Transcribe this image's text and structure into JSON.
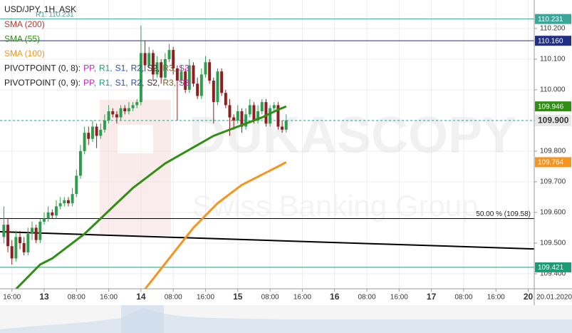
{
  "chart_data": {
    "type": "candlestick",
    "title": "USD/JPY, 1H, ASK",
    "watermark": {
      "brand": "DUKASCOPY",
      "tagline": "Swiss Banking Group"
    },
    "date_label": "20.01.2020",
    "xlim": [
      -10.95,
      121.5
    ],
    "ylim": [
      109.351,
      110.293
    ],
    "grid": true,
    "up_color": "#2e9e4e",
    "down_color": "#8e1f1f",
    "yticks": [
      {
        "value": 109.4,
        "label": "109.400"
      },
      {
        "value": 109.5,
        "label": "109.500"
      },
      {
        "value": 109.6,
        "label": "109.600"
      },
      {
        "value": 109.7,
        "label": "109.700"
      },
      {
        "value": 109.8,
        "label": "109.800"
      },
      {
        "value": 109.9,
        "label": "109.900"
      },
      {
        "value": 110.0,
        "label": "110.000"
      },
      {
        "value": 110.1,
        "label": "110.100"
      },
      {
        "value": 110.2,
        "label": "110.200"
      }
    ],
    "xticks": [
      {
        "value": -8,
        "label": "16:00"
      },
      {
        "value": 0,
        "label": "13",
        "major": true
      },
      {
        "value": 8,
        "label": "08:00"
      },
      {
        "value": 16,
        "label": "16:00"
      },
      {
        "value": 24,
        "label": "14",
        "major": true
      },
      {
        "value": 32,
        "label": "08:00"
      },
      {
        "value": 40,
        "label": "16:00"
      },
      {
        "value": 48,
        "label": "15",
        "major": true
      },
      {
        "value": 56,
        "label": "08:00"
      },
      {
        "value": 64,
        "label": "16:00"
      },
      {
        "value": 72,
        "label": "16",
        "major": true
      },
      {
        "value": 80,
        "label": "08:00"
      },
      {
        "value": 88,
        "label": "16:00"
      },
      {
        "value": 96,
        "label": "17",
        "major": true
      },
      {
        "value": 104,
        "label": "08:00"
      },
      {
        "value": 112,
        "label": "16:00"
      },
      {
        "value": 120,
        "label": "20",
        "major": true
      }
    ],
    "x": [
      -10,
      -9,
      -8,
      -7,
      -6,
      -5,
      -4,
      -3,
      -2,
      -1,
      0,
      1,
      2,
      3,
      4,
      5,
      6,
      7,
      8,
      9,
      10,
      11,
      12,
      13,
      14,
      15,
      16,
      17,
      18,
      19,
      20,
      21,
      22,
      23,
      24,
      25,
      26,
      27,
      28,
      29,
      30,
      31,
      32,
      33,
      34,
      35,
      36,
      37,
      38,
      39,
      40,
      41,
      42,
      43,
      44,
      45,
      46,
      47,
      48,
      49,
      50,
      51,
      52,
      53,
      54,
      55,
      56,
      57,
      58,
      59,
      60
    ],
    "ohlc": [
      [
        109.52,
        109.62,
        109.5,
        109.56
      ],
      [
        109.56,
        109.58,
        109.47,
        109.49
      ],
      [
        109.49,
        109.51,
        109.43,
        109.45
      ],
      [
        109.45,
        109.54,
        109.44,
        109.52
      ],
      [
        109.52,
        109.54,
        109.48,
        109.5
      ],
      [
        109.5,
        109.52,
        109.46,
        109.47
      ],
      [
        109.47,
        109.55,
        109.46,
        109.53
      ],
      [
        109.53,
        109.57,
        109.51,
        109.55
      ],
      [
        109.55,
        109.56,
        109.5,
        109.51
      ],
      [
        109.51,
        109.58,
        109.5,
        109.57
      ],
      [
        109.57,
        109.6,
        109.56,
        109.58
      ],
      [
        109.58,
        109.62,
        109.57,
        109.6
      ],
      [
        109.6,
        109.61,
        109.58,
        109.59
      ],
      [
        109.59,
        109.64,
        109.58,
        109.62
      ],
      [
        109.62,
        109.65,
        109.61,
        109.63
      ],
      [
        109.63,
        109.65,
        109.62,
        109.64
      ],
      [
        109.64,
        109.65,
        109.62,
        109.63
      ],
      [
        109.63,
        109.68,
        109.62,
        109.66
      ],
      [
        109.66,
        109.74,
        109.65,
        109.72
      ],
      [
        109.72,
        109.82,
        109.71,
        109.8
      ],
      [
        109.8,
        109.88,
        109.79,
        109.86
      ],
      [
        109.86,
        109.88,
        109.82,
        109.84
      ],
      [
        109.84,
        109.9,
        109.83,
        109.88
      ],
      [
        109.88,
        109.89,
        109.81,
        109.85
      ],
      [
        109.85,
        109.89,
        109.84,
        109.87
      ],
      [
        109.87,
        109.92,
        109.86,
        109.9
      ],
      [
        109.9,
        109.95,
        109.89,
        109.93
      ],
      [
        109.93,
        109.94,
        109.91,
        109.92
      ],
      [
        109.92,
        109.93,
        109.89,
        109.91
      ],
      [
        109.91,
        109.95,
        109.9,
        109.94
      ],
      [
        109.94,
        109.95,
        109.92,
        109.93
      ],
      [
        109.93,
        109.96,
        109.92,
        109.94
      ],
      [
        109.94,
        109.96,
        109.93,
        109.95
      ],
      [
        109.95,
        109.97,
        109.94,
        109.96
      ],
      [
        109.96,
        110.21,
        109.95,
        110.12
      ],
      [
        110.12,
        110.16,
        110.06,
        110.08
      ],
      [
        110.08,
        110.14,
        110.07,
        110.12
      ],
      [
        110.12,
        110.13,
        110.03,
        110.05
      ],
      [
        110.05,
        110.11,
        110.04,
        110.09
      ],
      [
        110.09,
        110.1,
        110.02,
        110.04
      ],
      [
        110.04,
        110.12,
        110.03,
        110.1
      ],
      [
        110.1,
        110.15,
        110.09,
        110.13
      ],
      [
        110.13,
        110.14,
        110.05,
        110.07
      ],
      [
        110.07,
        110.08,
        109.9,
        110.03
      ],
      [
        110.03,
        110.08,
        110.02,
        110.06
      ],
      [
        110.06,
        110.07,
        109.99,
        110.0
      ],
      [
        110.0,
        110.1,
        109.99,
        110.08
      ],
      [
        110.08,
        110.09,
        110.01,
        110.02
      ],
      [
        110.02,
        110.04,
        109.97,
        109.98
      ],
      [
        109.98,
        110.07,
        109.97,
        110.05
      ],
      [
        110.05,
        110.11,
        110.04,
        110.09
      ],
      [
        110.09,
        110.1,
        110.02,
        110.03
      ],
      [
        110.03,
        110.04,
        109.89,
        109.96
      ],
      [
        109.96,
        110.07,
        109.95,
        110.06
      ],
      [
        110.06,
        110.07,
        109.98,
        109.99
      ],
      [
        109.99,
        110.0,
        109.94,
        109.95
      ],
      [
        109.95,
        109.97,
        109.85,
        109.91
      ],
      [
        109.91,
        109.92,
        109.87,
        109.9
      ],
      [
        109.9,
        109.95,
        109.89,
        109.93
      ],
      [
        109.93,
        109.94,
        109.86,
        109.88
      ],
      [
        109.88,
        109.94,
        109.87,
        109.92
      ],
      [
        109.92,
        109.97,
        109.91,
        109.95
      ],
      [
        109.95,
        109.96,
        109.89,
        109.9
      ],
      [
        109.9,
        109.95,
        109.89,
        109.93
      ],
      [
        109.93,
        109.97,
        109.92,
        109.96
      ],
      [
        109.96,
        109.97,
        109.88,
        109.89
      ],
      [
        109.89,
        109.95,
        109.88,
        109.94
      ],
      [
        109.94,
        109.96,
        109.93,
        109.95
      ],
      [
        109.95,
        109.96,
        109.87,
        109.88
      ],
      [
        109.88,
        109.9,
        109.86,
        109.87
      ],
      [
        109.87,
        109.92,
        109.86,
        109.9
      ]
    ],
    "series": [
      {
        "name": "SMA (200)",
        "color": "#c0392b"
      },
      {
        "name": "SMA (55)",
        "color": "#2f8f12",
        "x": [
          -7,
          -4,
          -1,
          2,
          6,
          10,
          14,
          18,
          22,
          26,
          30,
          34,
          38,
          42,
          46,
          50,
          54,
          58,
          60
        ],
        "values": [
          109.35,
          109.39,
          109.43,
          109.45,
          109.49,
          109.53,
          109.58,
          109.63,
          109.68,
          109.72,
          109.76,
          109.79,
          109.82,
          109.85,
          109.87,
          109.89,
          109.91,
          109.935,
          109.946
        ],
        "end_label": "109.946"
      },
      {
        "name": "SMA (100)",
        "color": "#f7941d",
        "x": [
          25,
          28,
          31,
          34,
          37,
          40,
          43,
          46,
          49,
          52,
          55,
          58,
          60
        ],
        "values": [
          109.35,
          109.4,
          109.45,
          109.5,
          109.55,
          109.59,
          109.63,
          109.66,
          109.69,
          109.71,
          109.73,
          109.75,
          109.764
        ],
        "end_label": "109.764"
      }
    ],
    "pivots": [
      {
        "label": "PIVOTPOINT (0, 8):",
        "items": [
          {
            "text": "PP,",
            "color": "#c026c0"
          },
          {
            "text": "R1,",
            "color": "#1a9e6e"
          },
          {
            "text": "S1,",
            "color": "#2b4bb0"
          },
          {
            "text": "R2,",
            "color": "#2b4bb0"
          },
          {
            "text": "S2,",
            "color": "#333333"
          },
          {
            "text": "R3,",
            "color": "#8a5a2b"
          },
          {
            "text": "S3",
            "color": "#c026c0"
          }
        ]
      },
      {
        "label": "PIVOTPOINT (0, 9):",
        "items": [
          {
            "text": "PP,",
            "color": "#c026c0"
          },
          {
            "text": "R1,",
            "color": "#1a9e6e"
          },
          {
            "text": "S1,",
            "color": "#2b4bb0"
          },
          {
            "text": "R2,",
            "color": "#2b4bb0"
          },
          {
            "text": "S2,",
            "color": "#333333"
          },
          {
            "text": "R3,",
            "color": "#8a5a2b"
          },
          {
            "text": "S3",
            "color": "#c026c0"
          }
        ]
      }
    ],
    "levels": [
      {
        "value": 110.231,
        "color": "#3aa69a",
        "label": "R1: 110.231",
        "value_label": "110.231"
      },
      {
        "value": 110.16,
        "color": "#1f2f86",
        "value_label": "110.160"
      },
      {
        "value": 109.58,
        "color": "#000000",
        "label": "50.00 % (109.58)"
      },
      {
        "value": 109.421,
        "color": "#1d9b74",
        "value_label": "109.421"
      },
      {
        "value": 109.9,
        "color": "#2a9d8f",
        "dashed": true,
        "value_label": "109.900",
        "current": true
      }
    ],
    "trendline": {
      "x": [
        -10.95,
        121.5
      ],
      "values": [
        109.537,
        109.481
      ],
      "color": "#000000"
    }
  }
}
